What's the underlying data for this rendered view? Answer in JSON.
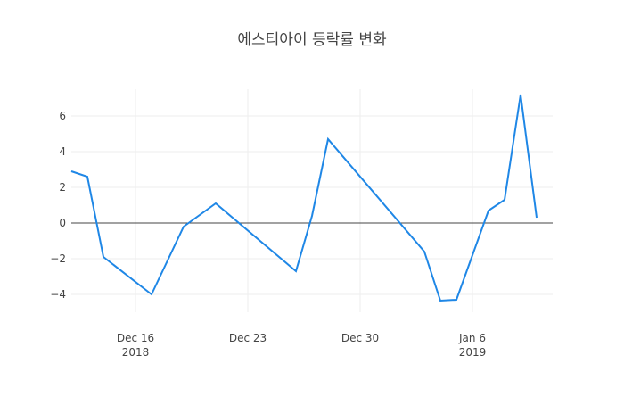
{
  "chart_data": {
    "type": "line",
    "title": "에스티아이 등락률 변화",
    "xlabel": "",
    "ylabel": "",
    "x_axis": {
      "type": "date",
      "range": [
        "2018-12-12",
        "2019-01-11"
      ],
      "ticks": [
        {
          "date": "2018-12-16",
          "label": "Dec 16",
          "sublabel": "2018"
        },
        {
          "date": "2018-12-23",
          "label": "Dec 23",
          "sublabel": ""
        },
        {
          "date": "2018-12-30",
          "label": "Dec 30",
          "sublabel": ""
        },
        {
          "date": "2019-01-06",
          "label": "Jan 6",
          "sublabel": "2019"
        }
      ]
    },
    "y_axis": {
      "range": [
        -5.0,
        7.5
      ],
      "ticks": [
        {
          "value": -4,
          "label": "−4"
        },
        {
          "value": -2,
          "label": "−2"
        },
        {
          "value": 0,
          "label": "0"
        },
        {
          "value": 2,
          "label": "2"
        },
        {
          "value": 4,
          "label": "4"
        },
        {
          "value": 6,
          "label": "6"
        }
      ]
    },
    "grid": true,
    "zero_line": true,
    "series": [
      {
        "color": "#1f87e6",
        "points": [
          {
            "x": "2018-12-12",
            "y": 2.9
          },
          {
            "x": "2018-12-13",
            "y": 2.6
          },
          {
            "x": "2018-12-14",
            "y": -1.9
          },
          {
            "x": "2018-12-17",
            "y": -4.0
          },
          {
            "x": "2018-12-19",
            "y": -0.2
          },
          {
            "x": "2018-12-21",
            "y": 1.1
          },
          {
            "x": "2018-12-26",
            "y": -2.7
          },
          {
            "x": "2018-12-27",
            "y": 0.4
          },
          {
            "x": "2018-12-28",
            "y": 4.7
          },
          {
            "x": "2019-01-03",
            "y": -1.6
          },
          {
            "x": "2019-01-04",
            "y": -4.35
          },
          {
            "x": "2019-01-05",
            "y": -4.3
          },
          {
            "x": "2019-01-07",
            "y": 0.7
          },
          {
            "x": "2019-01-08",
            "y": 1.3
          },
          {
            "x": "2019-01-09",
            "y": 7.2
          },
          {
            "x": "2019-01-10",
            "y": 0.3
          }
        ]
      }
    ]
  }
}
